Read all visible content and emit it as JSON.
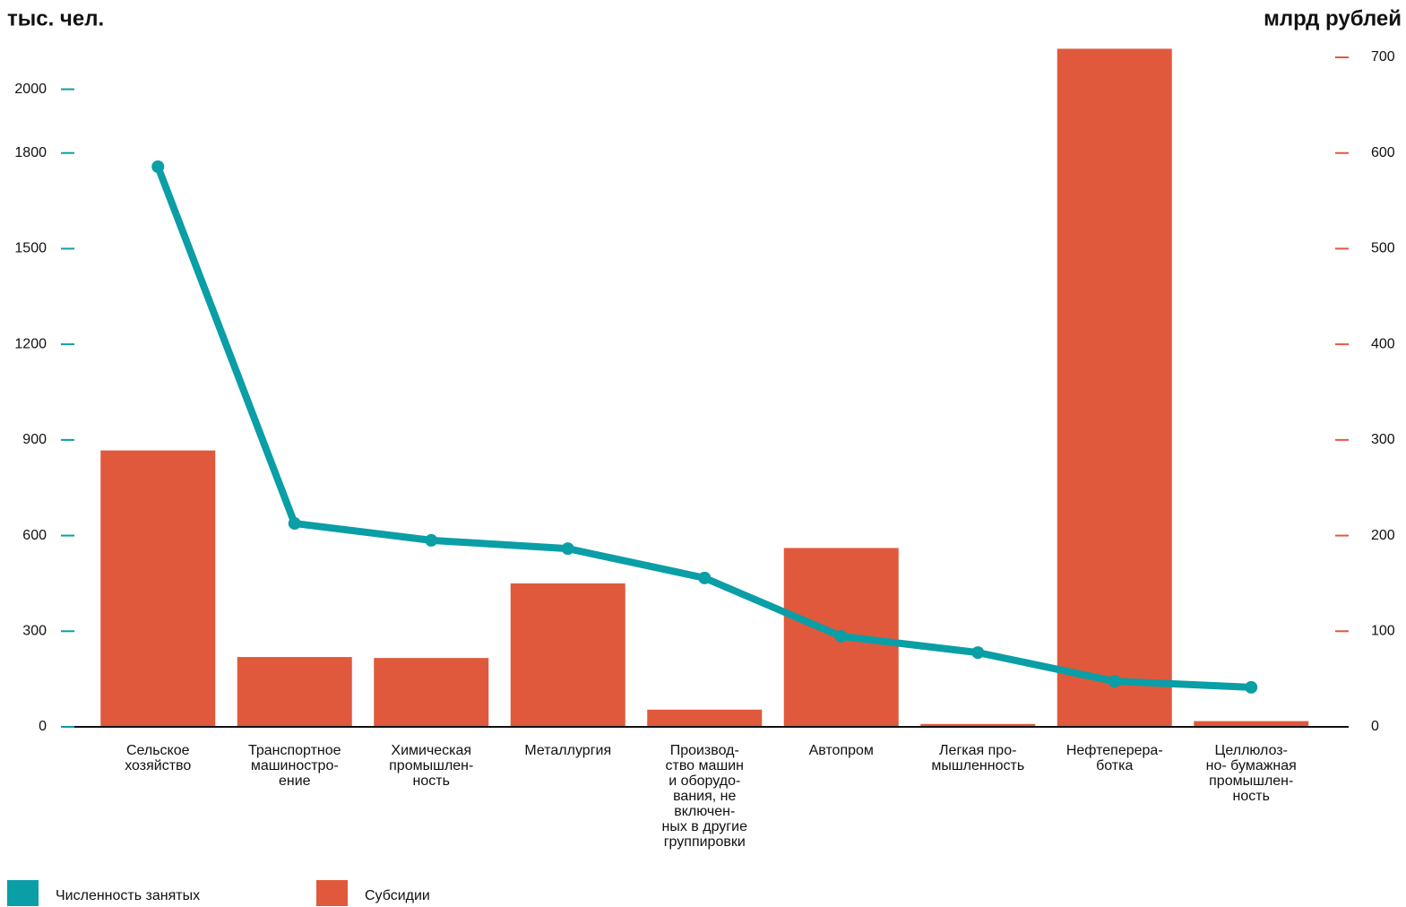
{
  "chart_data": {
    "type": "bar_line",
    "y_label": "тыс. чел.",
    "y2_label": "млрд рублей",
    "categories": [
      [
        "Сельское",
        "хозяйство"
      ],
      [
        "Транспортное",
        "машиностро-",
        "ение"
      ],
      [
        "Химическая",
        "промышлен-",
        "ность"
      ],
      [
        "Металлургия"
      ],
      [
        "Производ-",
        "ство машин",
        "и оборудо-",
        "вания, не",
        "включен-",
        "ных в другие",
        "группировки"
      ],
      [
        "Автопром"
      ],
      [
        "Легкая про-",
        "мышленность"
      ],
      [
        "Нефтеперера-",
        "ботка"
      ],
      [
        "Целлюлоз-",
        "но- бумажная",
        "промышлен-",
        "ность"
      ]
    ],
    "series": [
      {
        "name": "Численность занятых",
        "color": "#0a9ea6",
        "kind": "line",
        "axis": "y",
        "values": [
          1757,
          638,
          585,
          559,
          467,
          284,
          233,
          143,
          124
        ]
      },
      {
        "name": "Субсидии",
        "color": "#e0593c",
        "kind": "bar",
        "axis": "y2",
        "values": [
          289,
          73,
          72,
          150,
          18,
          187,
          3,
          709,
          6
        ]
      }
    ],
    "ylim": [
      0,
      2100
    ],
    "yticks": [
      0,
      300,
      600,
      900,
      1200,
      1500,
      1800,
      2000
    ],
    "y2lim": [
      0,
      700
    ],
    "y2ticks": [
      0,
      100,
      200,
      300,
      400,
      500,
      600,
      700
    ]
  }
}
